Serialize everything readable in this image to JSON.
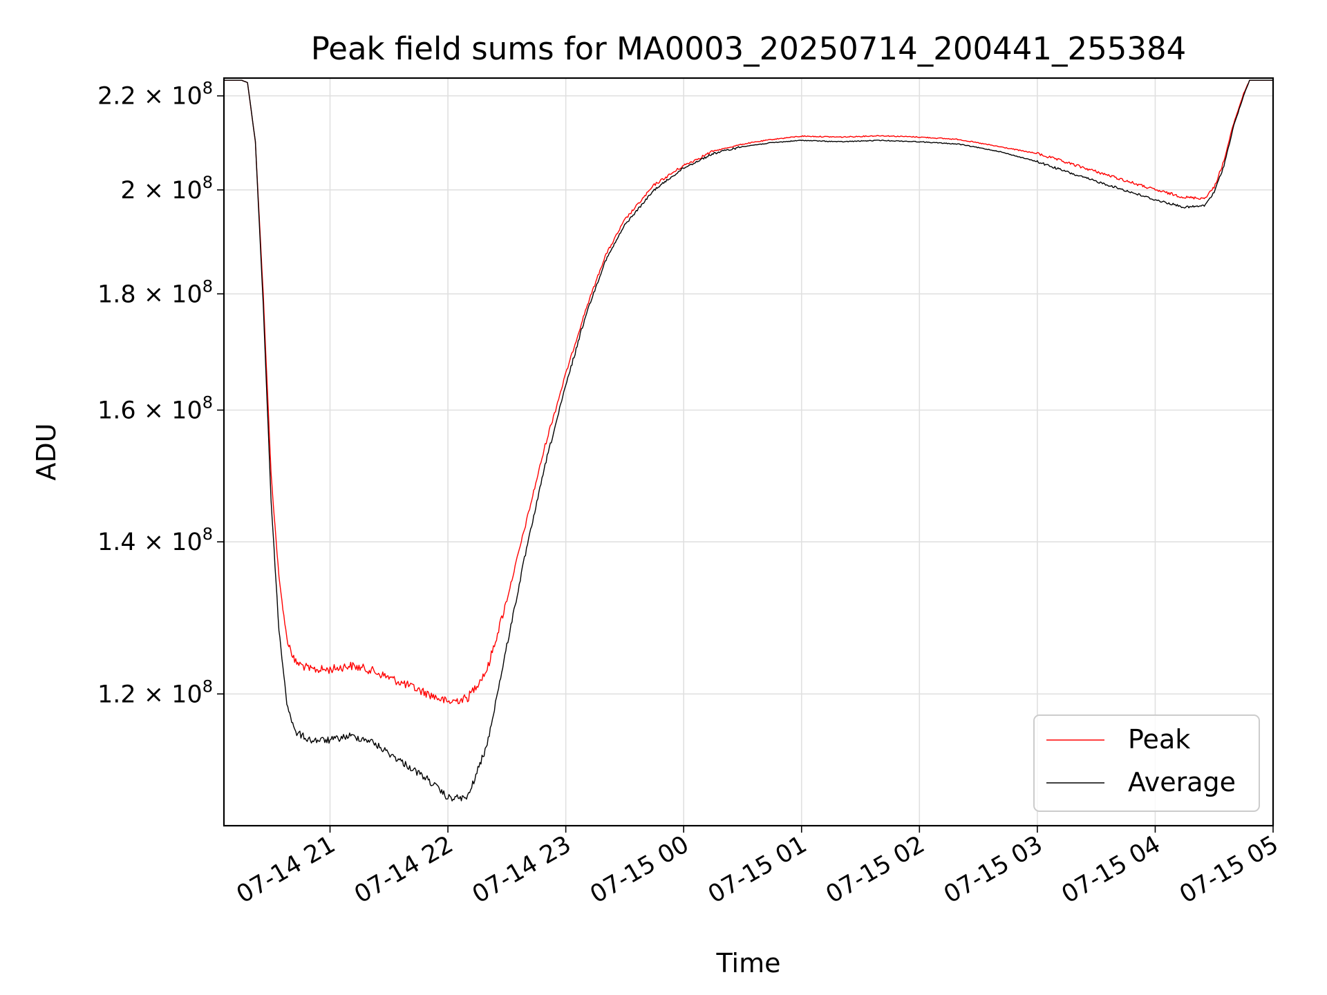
{
  "chart_data": {
    "type": "line",
    "title": "Peak field sums for MA0003_20250714_200441_255384",
    "xlabel": "Time",
    "ylabel": "ADU",
    "yscale": "log",
    "xlim": [
      "2025-07-14 20:06",
      "2025-07-15 05:00"
    ],
    "ylim": [
      105000000,
      224000000
    ],
    "grid": true,
    "legend_position": "lower-right",
    "x_ticks": [
      {
        "t": "2025-07-14 21:00",
        "label": "07-14 21"
      },
      {
        "t": "2025-07-14 22:00",
        "label": "07-14 22"
      },
      {
        "t": "2025-07-14 23:00",
        "label": "07-14 23"
      },
      {
        "t": "2025-07-15 00:00",
        "label": "07-15 00"
      },
      {
        "t": "2025-07-15 01:00",
        "label": "07-15 01"
      },
      {
        "t": "2025-07-15 02:00",
        "label": "07-15 02"
      },
      {
        "t": "2025-07-15 03:00",
        "label": "07-15 03"
      },
      {
        "t": "2025-07-15 04:00",
        "label": "07-15 04"
      },
      {
        "t": "2025-07-15 05:00",
        "label": "07-15 05"
      }
    ],
    "y_ticks": [
      {
        "value": 120000000,
        "mantissa": "1.2",
        "exponent": "8"
      },
      {
        "value": 140000000,
        "mantissa": "1.4",
        "exponent": "8"
      },
      {
        "value": 160000000,
        "mantissa": "1.6",
        "exponent": "8"
      },
      {
        "value": 180000000,
        "mantissa": "1.8",
        "exponent": "8"
      },
      {
        "value": 200000000,
        "mantissa": "2",
        "exponent": "8"
      },
      {
        "value": 220000000,
        "mantissa": "2.2",
        "exponent": "8"
      }
    ],
    "series": [
      {
        "name": "Peak",
        "color": "#ff0000",
        "points": [
          [
            "2025-07-14 20:06",
            223500000
          ],
          [
            "2025-07-14 20:15",
            223500000
          ],
          [
            "2025-07-14 20:18",
            223000000
          ],
          [
            "2025-07-14 20:22",
            210000000
          ],
          [
            "2025-07-14 20:26",
            180000000
          ],
          [
            "2025-07-14 20:30",
            150000000
          ],
          [
            "2025-07-14 20:34",
            135000000
          ],
          [
            "2025-07-14 20:38",
            127000000
          ],
          [
            "2025-07-14 20:42",
            124000000
          ],
          [
            "2025-07-14 20:50",
            123000000
          ],
          [
            "2025-07-14 21:00",
            123000000
          ],
          [
            "2025-07-14 21:10",
            123500000
          ],
          [
            "2025-07-14 21:20",
            123000000
          ],
          [
            "2025-07-14 21:30",
            122000000
          ],
          [
            "2025-07-14 21:40",
            121000000
          ],
          [
            "2025-07-14 21:50",
            120000000
          ],
          [
            "2025-07-14 22:00",
            119000000
          ],
          [
            "2025-07-14 22:10",
            119500000
          ],
          [
            "2025-07-14 22:20",
            123000000
          ],
          [
            "2025-07-14 22:30",
            132000000
          ],
          [
            "2025-07-14 22:40",
            143000000
          ],
          [
            "2025-07-14 22:50",
            155000000
          ],
          [
            "2025-07-14 23:00",
            166000000
          ],
          [
            "2025-07-14 23:10",
            177000000
          ],
          [
            "2025-07-14 23:20",
            187000000
          ],
          [
            "2025-07-14 23:30",
            194000000
          ],
          [
            "2025-07-14 23:45",
            201000000
          ],
          [
            "2025-07-15 00:00",
            205000000
          ],
          [
            "2025-07-15 00:15",
            208000000
          ],
          [
            "2025-07-15 00:30",
            209500000
          ],
          [
            "2025-07-15 00:45",
            210500000
          ],
          [
            "2025-07-15 01:00",
            211200000
          ],
          [
            "2025-07-15 01:20",
            211000000
          ],
          [
            "2025-07-15 01:40",
            211300000
          ],
          [
            "2025-07-15 02:00",
            211000000
          ],
          [
            "2025-07-15 02:20",
            210500000
          ],
          [
            "2025-07-15 02:40",
            209000000
          ],
          [
            "2025-07-15 03:00",
            207500000
          ],
          [
            "2025-07-15 03:20",
            205000000
          ],
          [
            "2025-07-15 03:40",
            202500000
          ],
          [
            "2025-07-15 04:00",
            200000000
          ],
          [
            "2025-07-15 04:15",
            198500000
          ],
          [
            "2025-07-15 04:25",
            198300000
          ],
          [
            "2025-07-15 04:30",
            200500000
          ],
          [
            "2025-07-15 04:35",
            206000000
          ],
          [
            "2025-07-15 04:40",
            214000000
          ],
          [
            "2025-07-15 04:45",
            220500000
          ],
          [
            "2025-07-15 04:48",
            223500000
          ],
          [
            "2025-07-15 05:02",
            223500000
          ]
        ]
      },
      {
        "name": "Average",
        "color": "#000000",
        "points": [
          [
            "2025-07-14 20:06",
            223500000
          ],
          [
            "2025-07-14 20:15",
            223500000
          ],
          [
            "2025-07-14 20:18",
            223000000
          ],
          [
            "2025-07-14 20:22",
            210000000
          ],
          [
            "2025-07-14 20:26",
            178000000
          ],
          [
            "2025-07-14 20:30",
            146000000
          ],
          [
            "2025-07-14 20:34",
            128000000
          ],
          [
            "2025-07-14 20:38",
            119000000
          ],
          [
            "2025-07-14 20:42",
            115500000
          ],
          [
            "2025-07-14 20:50",
            114500000
          ],
          [
            "2025-07-14 21:00",
            114500000
          ],
          [
            "2025-07-14 21:10",
            115000000
          ],
          [
            "2025-07-14 21:20",
            114500000
          ],
          [
            "2025-07-14 21:30",
            113000000
          ],
          [
            "2025-07-14 21:40",
            111500000
          ],
          [
            "2025-07-14 21:50",
            110000000
          ],
          [
            "2025-07-14 22:00",
            108000000
          ],
          [
            "2025-07-14 22:10",
            108000000
          ],
          [
            "2025-07-14 22:20",
            114000000
          ],
          [
            "2025-07-14 22:30",
            126000000
          ],
          [
            "2025-07-14 22:40",
            139000000
          ],
          [
            "2025-07-14 22:50",
            152000000
          ],
          [
            "2025-07-14 23:00",
            164000000
          ],
          [
            "2025-07-14 23:10",
            176000000
          ],
          [
            "2025-07-14 23:20",
            186000000
          ],
          [
            "2025-07-14 23:30",
            193000000
          ],
          [
            "2025-07-14 23:45",
            200000000
          ],
          [
            "2025-07-15 00:00",
            204500000
          ],
          [
            "2025-07-15 00:15",
            207500000
          ],
          [
            "2025-07-15 00:30",
            209000000
          ],
          [
            "2025-07-15 00:45",
            209800000
          ],
          [
            "2025-07-15 01:00",
            210300000
          ],
          [
            "2025-07-15 01:20",
            210000000
          ],
          [
            "2025-07-15 01:40",
            210300000
          ],
          [
            "2025-07-15 02:00",
            210000000
          ],
          [
            "2025-07-15 02:20",
            209500000
          ],
          [
            "2025-07-15 02:40",
            208000000
          ],
          [
            "2025-07-15 03:00",
            205800000
          ],
          [
            "2025-07-15 03:20",
            203000000
          ],
          [
            "2025-07-15 03:40",
            200500000
          ],
          [
            "2025-07-15 04:00",
            198000000
          ],
          [
            "2025-07-15 04:15",
            196500000
          ],
          [
            "2025-07-15 04:25",
            196800000
          ],
          [
            "2025-07-15 04:30",
            199500000
          ],
          [
            "2025-07-15 04:35",
            205000000
          ],
          [
            "2025-07-15 04:40",
            213500000
          ],
          [
            "2025-07-15 04:45",
            220000000
          ],
          [
            "2025-07-15 04:48",
            223500000
          ],
          [
            "2025-07-15 05:02",
            223500000
          ]
        ]
      }
    ]
  }
}
